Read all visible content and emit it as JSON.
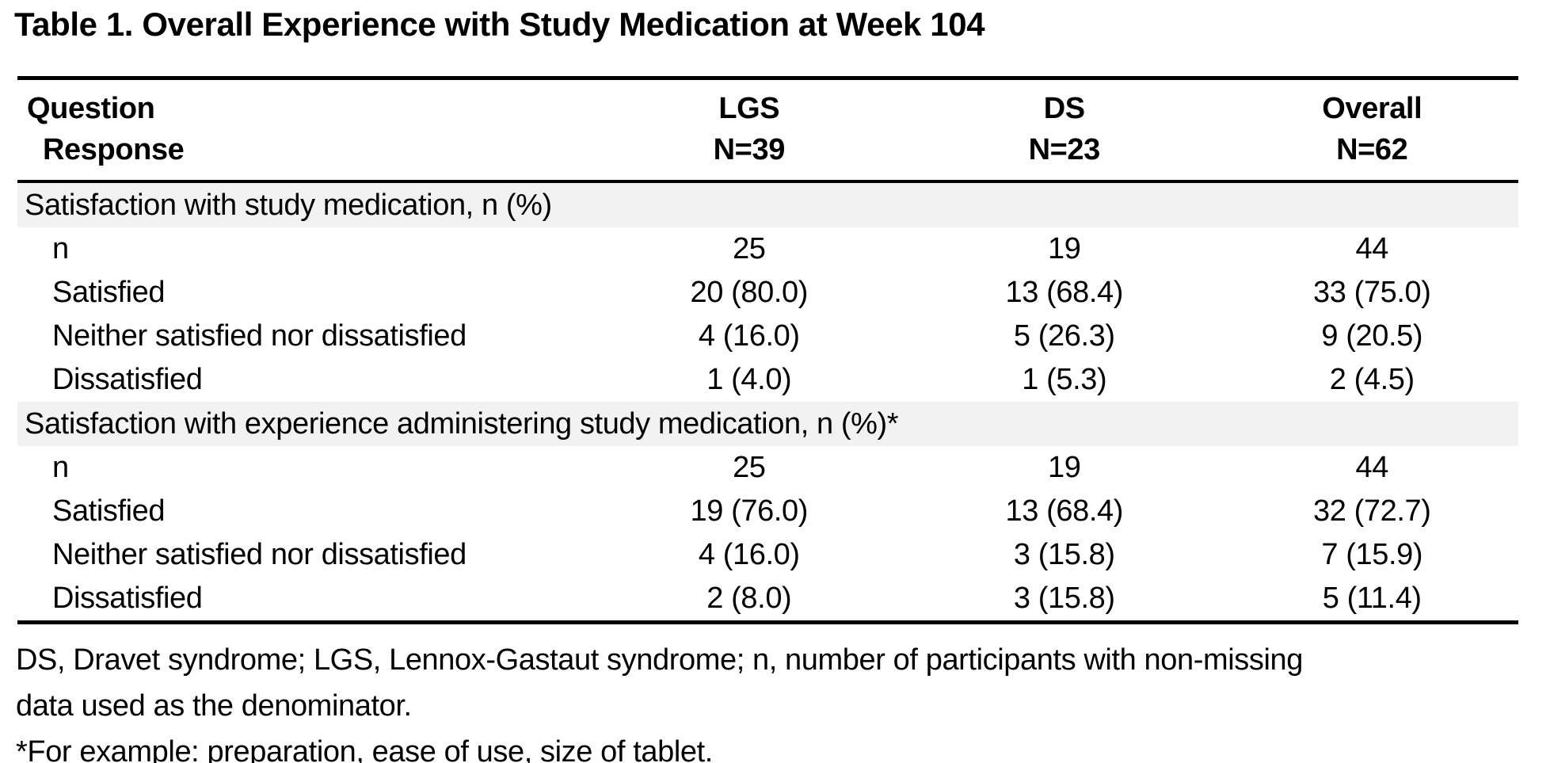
{
  "title": "Table 1. Overall Experience with Study Medication at Week 104",
  "table": {
    "header": {
      "col1_line1": "Question",
      "col1_line2": "Response",
      "columns": [
        {
          "label": "LGS",
          "n": "N=39"
        },
        {
          "label": "DS",
          "n": "N=23"
        },
        {
          "label": "Overall",
          "n": "N=62"
        }
      ]
    },
    "sections": [
      {
        "header": "Satisfaction with study medication, n (%)",
        "rows": [
          {
            "label": "n",
            "lgs": "25",
            "ds": "19",
            "overall": "44"
          },
          {
            "label": "Satisfied",
            "lgs": "20 (80.0)",
            "ds": "13 (68.4)",
            "overall": "33 (75.0)"
          },
          {
            "label": "Neither satisfied nor dissatisfied",
            "lgs": "4 (16.0)",
            "ds": "5 (26.3)",
            "overall": "9 (20.5)"
          },
          {
            "label": "Dissatisfied",
            "lgs": "1 (4.0)",
            "ds": "1 (5.3)",
            "overall": "2 (4.5)"
          }
        ]
      },
      {
        "header": "Satisfaction with experience administering study medication, n (%)*",
        "rows": [
          {
            "label": "n",
            "lgs": "25",
            "ds": "19",
            "overall": "44"
          },
          {
            "label": "Satisfied",
            "lgs": "19 (76.0)",
            "ds": "13 (68.4)",
            "overall": "32 (72.7)"
          },
          {
            "label": "Neither satisfied nor dissatisfied",
            "lgs": "4 (16.0)",
            "ds": "3 (15.8)",
            "overall": "7 (15.9)"
          },
          {
            "label": "Dissatisfied",
            "lgs": "2 (8.0)",
            "ds": "3 (15.8)",
            "overall": "5 (11.4)"
          }
        ]
      }
    ]
  },
  "footnotes": {
    "line1": "DS, Dravet syndrome; LGS, Lennox-Gastaut syndrome; n, number of participants with non-missing",
    "line2": "data used as the denominator.",
    "line3": "*For example: preparation, ease of use, size of tablet."
  },
  "colors": {
    "section_band_bg": "#f2f2f2",
    "text": "#000000",
    "rule": "#000000"
  }
}
